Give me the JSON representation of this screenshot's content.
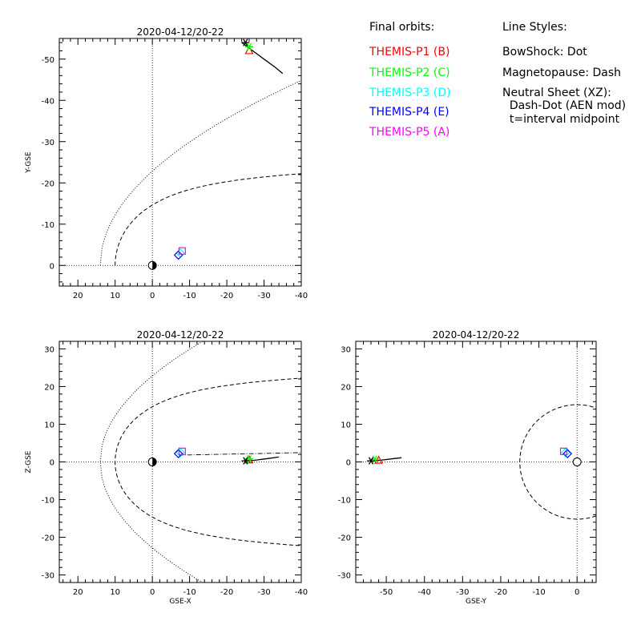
{
  "legend": {
    "orbits_title": "Final orbits:",
    "probes": [
      {
        "label": "THEMIS-P1 (B)",
        "color": "#ff0000"
      },
      {
        "label": "THEMIS-P2 (C)",
        "color": "#00ff00"
      },
      {
        "label": "THEMIS-P3 (D)",
        "color": "#00ffff"
      },
      {
        "label": "THEMIS-P4 (E)",
        "color": "#0000ff"
      },
      {
        "label": "THEMIS-P5 (A)",
        "color": "#ff00ff"
      }
    ],
    "styles_title": "Line Styles:",
    "styles": [
      "BowShock: Dot",
      "Magnetopause: Dash",
      "Neutral Sheet (XZ):",
      "  Dash-Dot (AEN mod)",
      "  t=interval midpoint"
    ]
  },
  "chart_data": [
    {
      "type": "line",
      "panel": "xy",
      "title": "2020-04-12/20-22",
      "xlabel": "",
      "ylabel": "Y-GSE",
      "xlim": [
        25,
        -40
      ],
      "ylim": [
        5,
        -55
      ],
      "xticks": [
        20,
        10,
        0,
        -10,
        -20,
        -30,
        -40
      ],
      "yticks": [
        0,
        -10,
        -20,
        -30,
        -40,
        -50
      ],
      "trajectories": [
        {
          "points": [
            [
              -24,
              -54
            ],
            [
              -27,
              -52
            ],
            [
              -30,
              -50
            ],
            [
              -33,
              -48
            ],
            [
              -35,
              -46.5
            ]
          ],
          "color": "#000000"
        }
      ],
      "markers": [
        {
          "probe": "P1",
          "symbol": "triangle",
          "x": -26,
          "y": -52,
          "color": "#ff0000"
        },
        {
          "probe": "P2",
          "symbol": "star",
          "x": -26,
          "y": -53,
          "color": "#00ff00"
        },
        {
          "probe": "P3",
          "symbol": "diamond",
          "x": -7.5,
          "y": -3,
          "color": "#00ffff"
        },
        {
          "probe": "P4",
          "symbol": "diamond",
          "x": -7,
          "y": -2.5,
          "color": "#0000ff"
        },
        {
          "probe": "P5",
          "symbol": "square",
          "x": -8,
          "y": -3.5,
          "color": "#ff00ff"
        },
        {
          "probe": "start",
          "symbol": "asterisk",
          "x": -25,
          "y": -54,
          "color": "#000000"
        }
      ]
    },
    {
      "type": "line",
      "panel": "xz",
      "title": "2020-04-12/20-22",
      "xlabel": "GSE-X",
      "ylabel": "Z-GSE",
      "xlim": [
        25,
        -40
      ],
      "ylim": [
        -32,
        32
      ],
      "xticks": [
        20,
        10,
        0,
        -10,
        -20,
        -30,
        -40
      ],
      "yticks": [
        -30,
        -20,
        -10,
        0,
        10,
        20,
        30
      ],
      "trajectories": [
        {
          "points": [
            [
              -25,
              0.2
            ],
            [
              -28,
              0.5
            ],
            [
              -31,
              0.9
            ],
            [
              -34,
              1.3
            ]
          ],
          "color": "#000000"
        }
      ],
      "markers": [
        {
          "probe": "P1",
          "symbol": "triangle",
          "x": -26,
          "y": 0.5,
          "color": "#ff0000"
        },
        {
          "probe": "P2",
          "symbol": "star",
          "x": -26,
          "y": 0.8,
          "color": "#00ff00"
        },
        {
          "probe": "P3",
          "symbol": "diamond",
          "x": -7.5,
          "y": 2.5,
          "color": "#00ffff"
        },
        {
          "probe": "P4",
          "symbol": "diamond",
          "x": -7,
          "y": 2.2,
          "color": "#0000ff"
        },
        {
          "probe": "P5",
          "symbol": "square",
          "x": -8,
          "y": 2.8,
          "color": "#ff00ff"
        },
        {
          "probe": "start",
          "symbol": "asterisk",
          "x": -25,
          "y": 0.3,
          "color": "#000000"
        }
      ]
    },
    {
      "type": "line",
      "panel": "yz",
      "title": "2020-04-12/20-22",
      "xlabel": "GSE-Y",
      "ylabel": "",
      "xlim": [
        -58,
        5
      ],
      "ylim": [
        -32,
        32
      ],
      "xticks": [
        -50,
        -40,
        -30,
        -20,
        -10,
        0
      ],
      "yticks": [
        -30,
        -20,
        -10,
        0,
        10,
        20,
        30
      ],
      "trajectories": [
        {
          "points": [
            [
              -54,
              0.2
            ],
            [
              -51,
              0.5
            ],
            [
              -48,
              0.9
            ],
            [
              -46,
              1.1
            ]
          ],
          "color": "#000000"
        }
      ],
      "markers": [
        {
          "probe": "P1",
          "symbol": "triangle",
          "x": -52,
          "y": 0.4,
          "color": "#ff0000"
        },
        {
          "probe": "P2",
          "symbol": "star",
          "x": -53,
          "y": 0.7,
          "color": "#00ff00"
        },
        {
          "probe": "P3",
          "symbol": "diamond",
          "x": -3,
          "y": 2.5,
          "color": "#00ffff"
        },
        {
          "probe": "P4",
          "symbol": "diamond",
          "x": -2.5,
          "y": 2.2,
          "color": "#0000ff"
        },
        {
          "probe": "P5",
          "symbol": "square",
          "x": -3.5,
          "y": 2.8,
          "color": "#ff00ff"
        },
        {
          "probe": "start",
          "symbol": "asterisk",
          "x": -54,
          "y": 0.3,
          "color": "#000000"
        }
      ]
    }
  ]
}
